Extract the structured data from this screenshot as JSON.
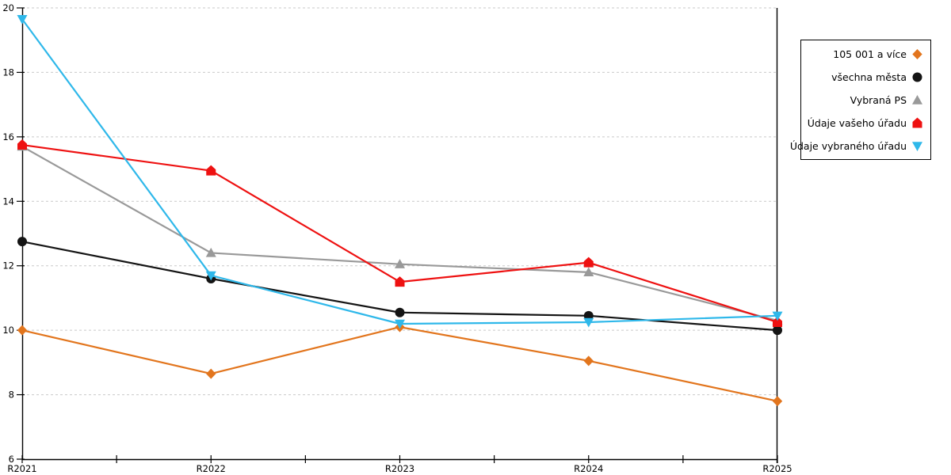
{
  "chart_data": {
    "type": "line",
    "title": "",
    "xlabel": "",
    "ylabel": "",
    "x_labels": [
      "R2021",
      "R2022",
      "R2023",
      "R2024",
      "R2025"
    ],
    "y_ticks": [
      6,
      8,
      10,
      12,
      14,
      16,
      18,
      20
    ],
    "ylim": [
      6,
      20
    ],
    "grid": "horizontal-dashed",
    "legend_position": "right-outside",
    "colors": {
      "axis": "#000000",
      "gridline": "#c9c9c9",
      "background": "#ffffff"
    },
    "series": [
      {
        "name": "105 001 a více",
        "marker": "diamond",
        "color": "#E2751D",
        "values": [
          10.0,
          8.65,
          10.1,
          9.05,
          7.8
        ]
      },
      {
        "name": "všechna města",
        "marker": "circle",
        "color": "#141414",
        "values": [
          12.75,
          11.6,
          10.55,
          10.45,
          10.0
        ]
      },
      {
        "name": "Vybraná PS",
        "marker": "triangle-up",
        "color": "#999999",
        "values": [
          15.7,
          12.4,
          12.05,
          11.8,
          10.3
        ]
      },
      {
        "name": "Údaje vašeho úřadu",
        "marker": "pentagon",
        "color": "#EE1111",
        "values": [
          15.75,
          14.95,
          11.5,
          12.1,
          10.25
        ]
      },
      {
        "name": "Údaje vybraného úřadu",
        "marker": "triangle-down",
        "color": "#2FB8EA",
        "values": [
          19.65,
          11.7,
          10.2,
          10.25,
          10.45
        ]
      }
    ]
  }
}
